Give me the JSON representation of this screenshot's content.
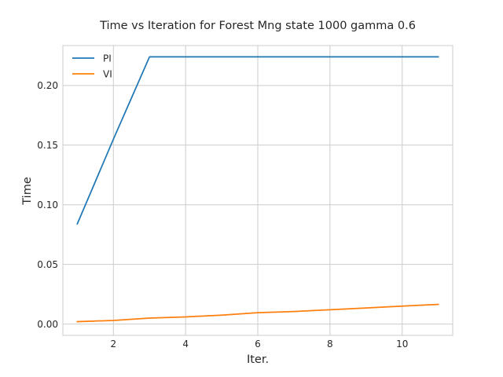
{
  "chart_data": {
    "type": "line",
    "title": "Time vs Iteration for Forest Mng state 1000 gamma 0.6",
    "xlabel": "Iter.",
    "ylabel": "Time",
    "xlim": [
      0.6,
      11.4
    ],
    "ylim": [
      -0.0095,
      0.2335
    ],
    "xticks": [
      2,
      4,
      6,
      8,
      10
    ],
    "yticks": [
      0.0,
      0.05,
      0.1,
      0.15,
      0.2
    ],
    "xtick_labels": [
      "2",
      "4",
      "6",
      "8",
      "10"
    ],
    "ytick_labels": [
      "0.00",
      "0.05",
      "0.10",
      "0.15",
      "0.20"
    ],
    "grid": true,
    "legend_position": "upper-left",
    "x": [
      1,
      2,
      3,
      4,
      5,
      6,
      7,
      8,
      9,
      10,
      11
    ],
    "series": [
      {
        "name": "PI",
        "color": "#1f77b4",
        "values": [
          0.084,
          0.155,
          0.224,
          0.224,
          0.224,
          0.224,
          0.224,
          0.224,
          0.224,
          0.224,
          0.224
        ]
      },
      {
        "name": "VI",
        "color": "#ff7f0e",
        "values": [
          0.002,
          0.003,
          0.005,
          0.006,
          0.0075,
          0.0095,
          0.0105,
          0.012,
          0.0135,
          0.015,
          0.0165
        ]
      }
    ]
  }
}
